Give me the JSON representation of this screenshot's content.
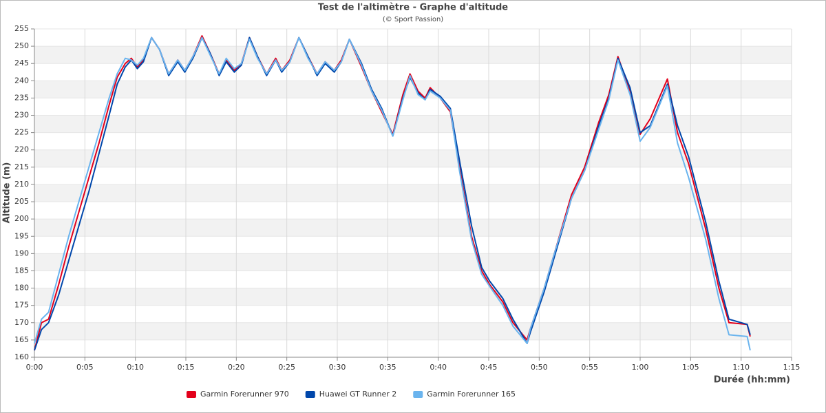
{
  "chart_data": {
    "type": "line",
    "title": "Test de l'altimètre - Graphe d'altitude",
    "subtitle": "(© Sport Passion)",
    "x_label": "Durée (hh:mm)",
    "y_label": "Altitude (m)",
    "x": [
      0,
      0.7,
      1.4,
      2.4,
      3.4,
      4.4,
      5.4,
      6.4,
      7.4,
      8.2,
      9,
      9.6,
      10.2,
      10.8,
      11.6,
      12.4,
      13.3,
      14.2,
      14.9,
      15.7,
      16.6,
      17.4,
      18.3,
      19,
      19.8,
      20.5,
      21.3,
      22.1,
      23,
      23.9,
      24.5,
      25.3,
      26.2,
      27.1,
      28,
      28.8,
      29.7,
      30.4,
      31.2,
      32.4,
      33.4,
      34.4,
      35.5,
      36.5,
      37.2,
      38,
      38.7,
      39.2,
      40.2,
      41.2,
      42.1,
      43.3,
      44.3,
      45.1,
      46.4,
      47.4,
      48.8,
      49.1,
      50.5,
      51.5,
      53.2,
      54.5,
      55.9,
      56.9,
      57.8,
      59,
      60,
      61,
      62.7,
      63.7,
      64.8,
      66.5,
      67.8,
      68.8,
      70.6,
      70.9
    ],
    "series": [
      {
        "name": "Garmin Forerunner 970",
        "color": "#e3001b",
        "values": [
          162,
          170,
          171,
          181,
          192,
          202,
          212,
          222,
          233,
          241,
          245,
          246.5,
          244,
          246,
          252.5,
          249,
          242,
          246,
          243,
          247,
          253,
          248,
          242,
          246,
          243,
          245,
          252.5,
          247,
          242,
          246.5,
          243,
          246,
          252.5,
          247,
          242,
          245.5,
          243,
          246,
          252,
          244,
          237,
          231,
          224.5,
          236,
          242,
          237,
          235,
          238,
          235,
          231,
          215,
          195,
          185,
          181,
          176,
          170,
          165,
          168,
          180,
          190,
          207,
          215,
          228,
          236,
          247,
          237,
          224.5,
          229,
          240.5,
          225,
          216,
          197,
          180,
          170,
          169.5,
          166
        ]
      },
      {
        "name": "Huawei GT Runner 2",
        "color": "#0047ab",
        "values": [
          162,
          168,
          170,
          178,
          188,
          198,
          208,
          219,
          230,
          239,
          244,
          246,
          243.5,
          245.5,
          252.5,
          249,
          241.5,
          245.5,
          242.5,
          246.5,
          252.5,
          248,
          241.5,
          245.5,
          242.5,
          244.5,
          252.5,
          247,
          241.5,
          246,
          242.5,
          245.5,
          252.5,
          247,
          241.5,
          245,
          242.5,
          245.5,
          252,
          245,
          237.5,
          232,
          224,
          235,
          241,
          236.5,
          234.5,
          237.5,
          235.5,
          232,
          217,
          198,
          186,
          182,
          177,
          171,
          164,
          167,
          179,
          189,
          206,
          214,
          227,
          235,
          246.5,
          238,
          225,
          227,
          239,
          227,
          218,
          199,
          182,
          171,
          169.5,
          166.5
        ]
      },
      {
        "name": "Garmin Forerunner 165",
        "color": "#6ab4ee",
        "values": [
          164,
          171,
          173,
          184,
          195,
          205,
          215,
          225,
          235,
          242,
          246.5,
          246,
          244.5,
          246.5,
          252.5,
          249,
          242,
          246,
          243,
          247,
          252.5,
          247.5,
          242,
          246.5,
          243.5,
          245,
          252,
          246.5,
          242,
          246,
          243,
          245.5,
          252.5,
          246.5,
          242,
          245.5,
          243,
          245.5,
          252,
          244.5,
          237,
          231.5,
          224,
          234.5,
          241.5,
          236,
          234.5,
          237,
          235,
          231.5,
          214,
          194,
          184,
          180.5,
          175,
          169,
          164,
          168,
          180,
          190,
          206,
          214,
          226,
          234.5,
          246,
          236,
          222.5,
          226.5,
          238.5,
          222,
          212,
          194,
          177,
          166.5,
          166,
          162
        ]
      }
    ],
    "xlim": [
      0,
      75
    ],
    "xticks": [
      {
        "value": 0,
        "label": "0:00"
      },
      {
        "value": 5,
        "label": "0:05"
      },
      {
        "value": 10,
        "label": "0:10"
      },
      {
        "value": 15,
        "label": "0:15"
      },
      {
        "value": 20,
        "label": "0:20"
      },
      {
        "value": 25,
        "label": "0:25"
      },
      {
        "value": 30,
        "label": "0:30"
      },
      {
        "value": 35,
        "label": "0:35"
      },
      {
        "value": 40,
        "label": "0:40"
      },
      {
        "value": 45,
        "label": "0:45"
      },
      {
        "value": 50,
        "label": "0:50"
      },
      {
        "value": 55,
        "label": "0:55"
      },
      {
        "value": 60,
        "label": "1:00"
      },
      {
        "value": 65,
        "label": "1:05"
      },
      {
        "value": 70,
        "label": "1:10"
      },
      {
        "value": 75,
        "label": "1:15"
      }
    ],
    "ylim": [
      160,
      255
    ],
    "yticks": [
      160,
      165,
      170,
      175,
      180,
      185,
      190,
      195,
      200,
      205,
      210,
      215,
      220,
      225,
      230,
      235,
      240,
      245,
      250,
      255
    ],
    "grid": true,
    "legend": "bottom"
  }
}
